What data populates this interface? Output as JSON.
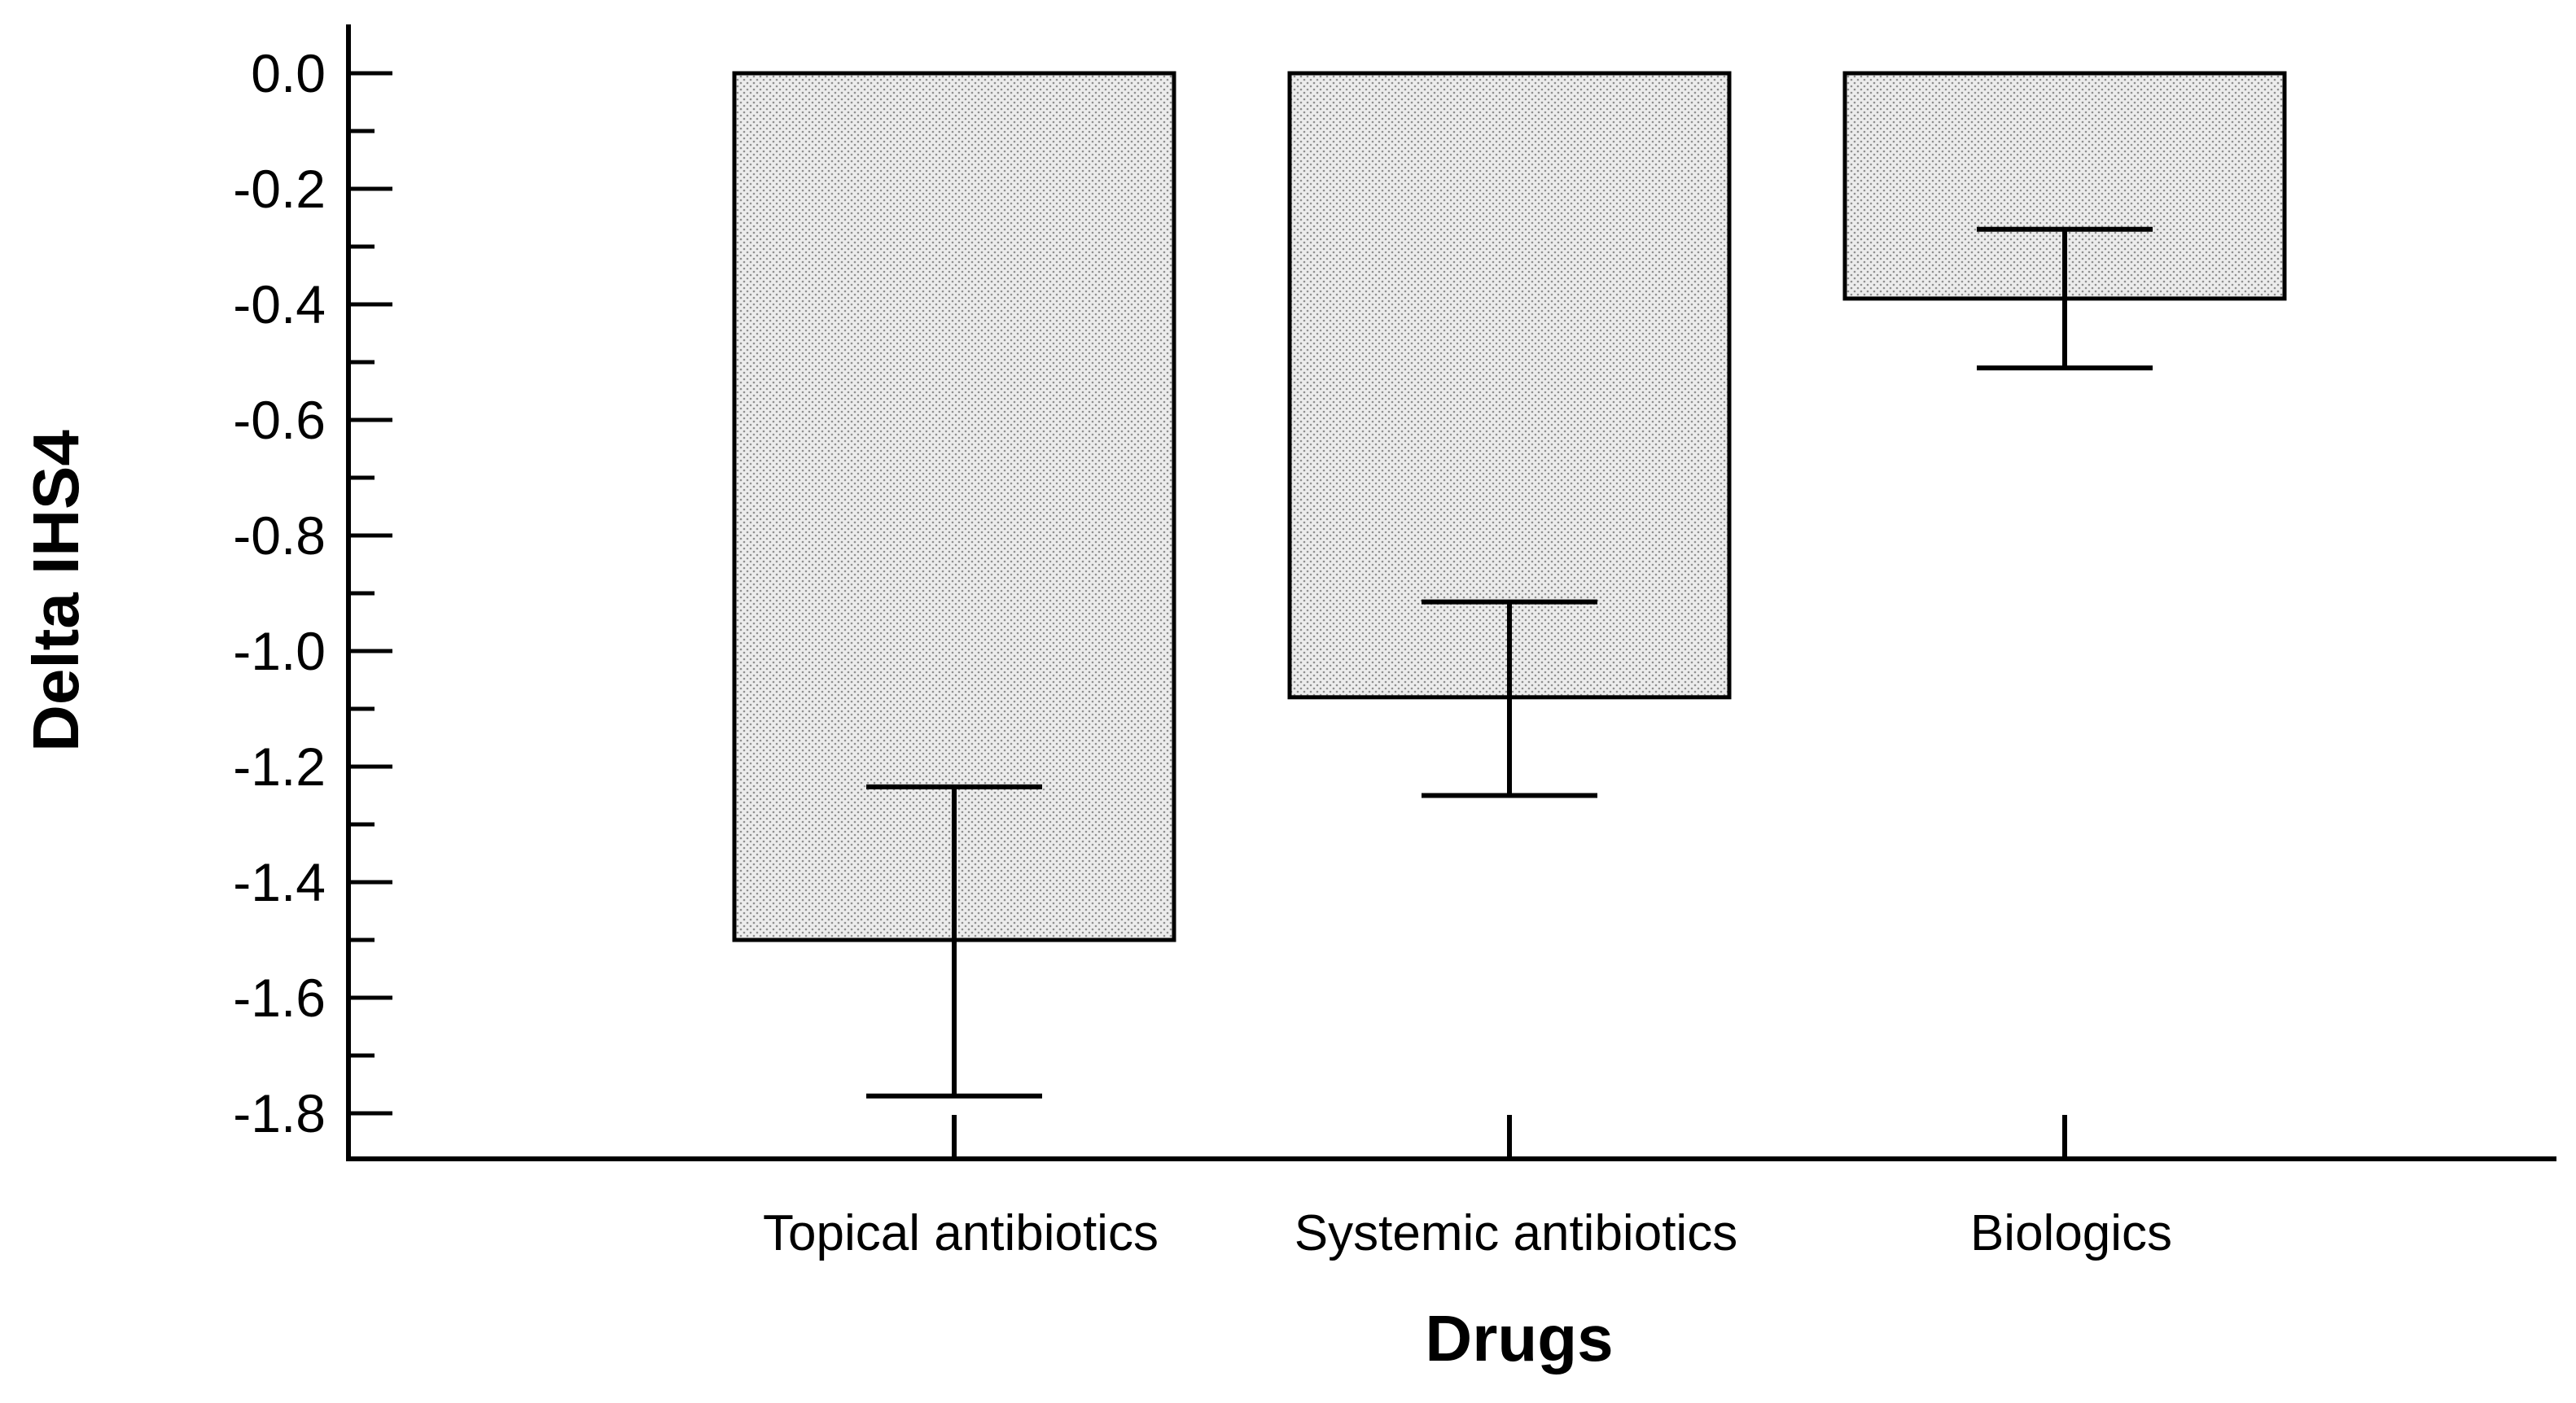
{
  "chart_data": {
    "type": "bar",
    "categories": [
      "Topical antibiotics",
      "Systemic antibiotics",
      "Biologics"
    ],
    "values": [
      -1.5,
      -1.08,
      -0.39
    ],
    "error_bars": [
      {
        "low": -1.77,
        "high": -1.235
      },
      {
        "low": -1.25,
        "high": -0.915
      },
      {
        "low": -0.51,
        "high": -0.27
      }
    ],
    "xlabel": "Drugs",
    "ylabel": "Delta IHS4",
    "ylim": [
      -1.88,
      0.08
    ],
    "yticks": [
      "0.0",
      "-0.2",
      "-0.4",
      "-0.6",
      "-0.8",
      "-1.0",
      "-1.2",
      "-1.4",
      "-1.6",
      "-1.8"
    ],
    "ytick_values": [
      0.0,
      -0.2,
      -0.4,
      -0.6,
      -0.8,
      -1.0,
      -1.2,
      -1.4,
      -1.6,
      -1.8
    ],
    "grid": false,
    "colors": {
      "bar_fill": "#e6e6e6",
      "bar_dots": "#9a9a9a",
      "stroke": "#000000"
    }
  }
}
